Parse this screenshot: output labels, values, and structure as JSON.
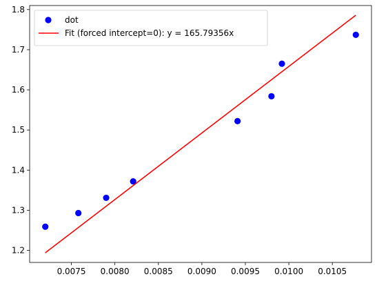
{
  "chart_data": {
    "type": "scatter",
    "title": "",
    "xlabel": "",
    "ylabel": "",
    "xlim": [
      0.00702,
      0.01095
    ],
    "ylim": [
      1.17,
      1.81
    ],
    "xticks": [
      0.0075,
      0.008,
      0.0085,
      0.009,
      0.0095,
      0.01,
      0.0105
    ],
    "xtick_labels": [
      "0.0075",
      "0.0080",
      "0.0085",
      "0.0090",
      "0.0095",
      "0.0100",
      "0.0105"
    ],
    "yticks": [
      1.2,
      1.3,
      1.4,
      1.5,
      1.6,
      1.7,
      1.8
    ],
    "ytick_labels": [
      "1.2",
      "1.3",
      "1.4",
      "1.5",
      "1.6",
      "1.7",
      "1.8"
    ],
    "grid": false,
    "legend_position": "top-left",
    "series": [
      {
        "name": "dot",
        "type": "scatter",
        "color": "#0000ff",
        "x": [
          0.0072,
          0.00758,
          0.0079,
          0.00821,
          0.00941,
          0.0098,
          0.00992,
          0.01077
        ],
        "y": [
          1.259,
          1.293,
          1.331,
          1.372,
          1.522,
          1.584,
          1.665,
          1.737
        ]
      },
      {
        "name": "Fit (forced intercept=0): y = 165.79356x",
        "type": "line",
        "color": "#ff0000",
        "slope": 165.79356,
        "intercept": 0,
        "x": [
          0.0072,
          0.01077
        ],
        "y": [
          1.194,
          1.786
        ]
      }
    ]
  }
}
